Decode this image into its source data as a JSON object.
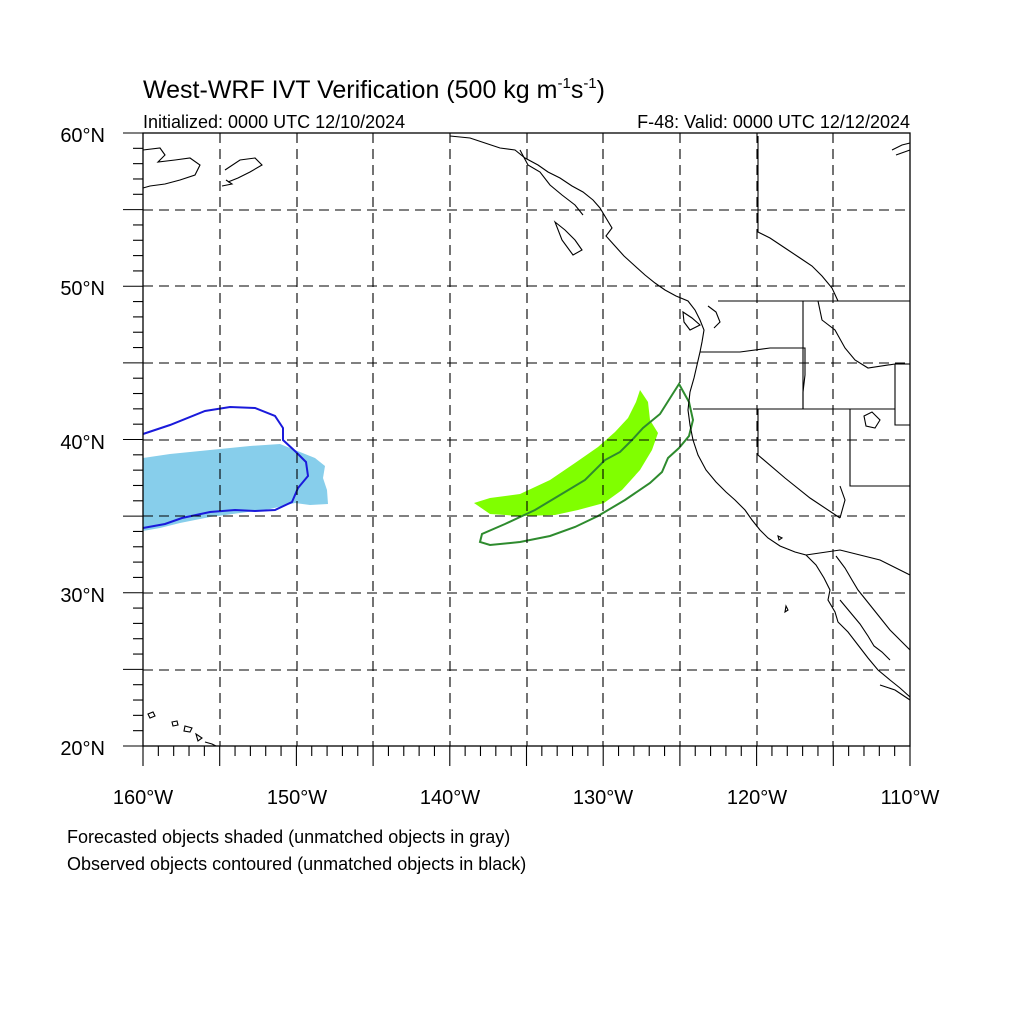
{
  "title": {
    "main": "West-WRF IVT Verification (500 kg m",
    "exp1": "-1",
    "mid": "s",
    "exp2": "-1",
    "close": ")"
  },
  "subtitle": {
    "left": "Initialized: 0000 UTC 12/10/2024",
    "right": "F-48: Valid: 0000 UTC 12/12/2024"
  },
  "map": {
    "lon_range": [
      -160,
      -110
    ],
    "lat_range": [
      20,
      60
    ],
    "grid_dashed": true,
    "lat_labels": [
      "60°N",
      "50°N",
      "40°N",
      "30°N",
      "20°N"
    ],
    "lon_labels": [
      "160°W",
      "150°W",
      "140°W",
      "130°W",
      "120°W",
      "110°W"
    ],
    "colors": {
      "forecast_blue": "#87ceeb",
      "observed_blue": "#1a1adb",
      "forecast_green": "#80ff00",
      "observed_green": "#2e8b2e",
      "coast": "#000000"
    }
  },
  "notes": {
    "line1": "Forecasted objects shaded (unmatched objects in gray)",
    "line2": "Observed objects contoured (unmatched objects in black)"
  }
}
